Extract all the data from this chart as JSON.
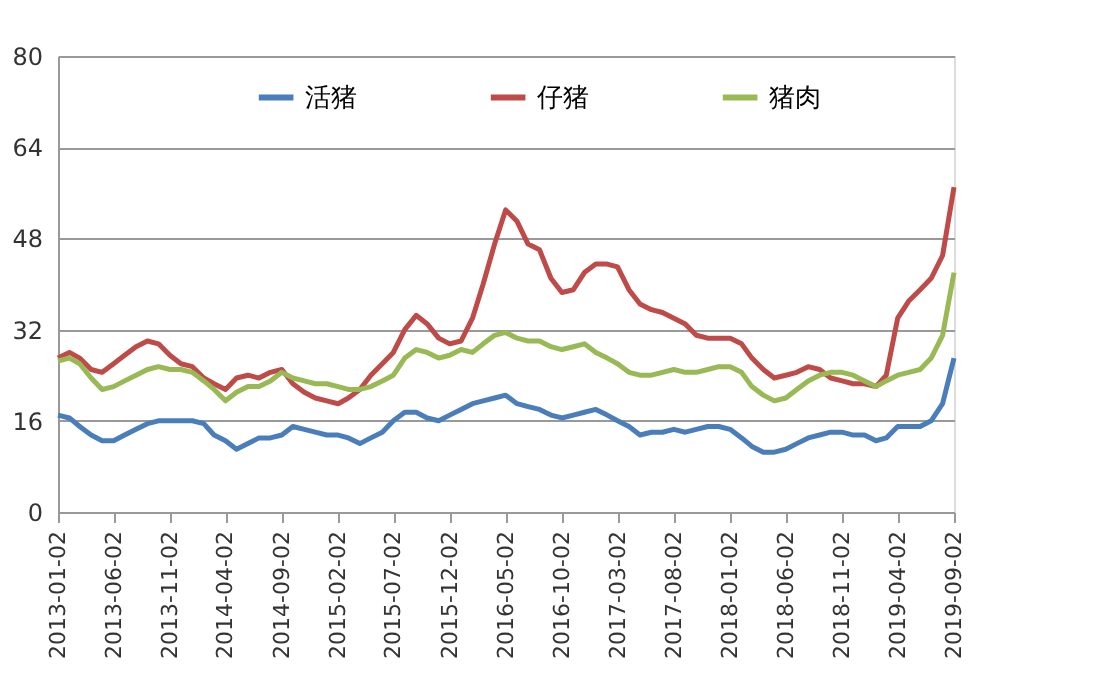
{
  "chart_data": {
    "type": "line",
    "x": [
      "2013-01-02",
      "2013-02-02",
      "2013-03-02",
      "2013-04-02",
      "2013-05-02",
      "2013-06-02",
      "2013-07-02",
      "2013-08-02",
      "2013-09-02",
      "2013-10-02",
      "2013-11-02",
      "2013-12-02",
      "2014-01-02",
      "2014-02-02",
      "2014-03-02",
      "2014-04-02",
      "2014-05-02",
      "2014-06-02",
      "2014-07-02",
      "2014-08-02",
      "2014-09-02",
      "2014-10-02",
      "2014-11-02",
      "2014-12-02",
      "2015-01-02",
      "2015-02-02",
      "2015-03-02",
      "2015-04-02",
      "2015-05-02",
      "2015-06-02",
      "2015-07-02",
      "2015-08-02",
      "2015-09-02",
      "2015-10-02",
      "2015-11-02",
      "2015-12-02",
      "2016-01-02",
      "2016-02-02",
      "2016-03-02",
      "2016-04-02",
      "2016-05-02",
      "2016-06-02",
      "2016-07-02",
      "2016-08-02",
      "2016-09-02",
      "2016-10-02",
      "2016-11-02",
      "2016-12-02",
      "2017-01-02",
      "2017-02-02",
      "2017-03-02",
      "2017-04-02",
      "2017-05-02",
      "2017-06-02",
      "2017-07-02",
      "2017-08-02",
      "2017-09-02",
      "2017-10-02",
      "2017-11-02",
      "2017-12-02",
      "2018-01-02",
      "2018-02-02",
      "2018-03-02",
      "2018-04-02",
      "2018-05-02",
      "2018-06-02",
      "2018-07-02",
      "2018-08-02",
      "2018-09-02",
      "2018-10-02",
      "2018-11-02",
      "2018-12-02",
      "2019-01-02",
      "2019-02-02",
      "2019-03-02",
      "2019-04-02",
      "2019-05-02",
      "2019-06-02",
      "2019-07-02",
      "2019-08-02",
      "2019-09-02"
    ],
    "series": [
      {
        "name": "活猪",
        "color": "#4a7ebb",
        "values": [
          17,
          16.5,
          15,
          13.5,
          12.5,
          12.5,
          13.5,
          14.5,
          15.5,
          16,
          16,
          16,
          16,
          15.5,
          13.5,
          12.5,
          11,
          12,
          13,
          13,
          13.5,
          15,
          14.5,
          14,
          13.5,
          13.5,
          13,
          12,
          13,
          14,
          16,
          17.5,
          17.5,
          16.5,
          16,
          17,
          18,
          19,
          19.5,
          20,
          20.5,
          19,
          18.5,
          18,
          17,
          16.5,
          17,
          17.5,
          18,
          17,
          16,
          15,
          13.5,
          14,
          14,
          14.5,
          14,
          14.5,
          15,
          15,
          14.5,
          13,
          11.5,
          10.5,
          10.5,
          11,
          12,
          13,
          13.5,
          14,
          14,
          13.5,
          13.5,
          12.5,
          13,
          15,
          15,
          15,
          16,
          19,
          27
        ]
      },
      {
        "name": "仔猪",
        "color": "#be4b48",
        "values": [
          27,
          28,
          27,
          25,
          24.5,
          26,
          27.5,
          29,
          30,
          29.5,
          27.5,
          26,
          25.5,
          23.5,
          22.5,
          21.5,
          23.5,
          24,
          23.5,
          24.5,
          25,
          22.5,
          21,
          20,
          19.5,
          19,
          20,
          21.5,
          24,
          26,
          28,
          32,
          34.5,
          33,
          30.5,
          29.5,
          30,
          34,
          40,
          47,
          53,
          51,
          47,
          46,
          41,
          38.5,
          39,
          42,
          43.5,
          43.5,
          43,
          39,
          36.5,
          35.5,
          35,
          34,
          33,
          31,
          30.5,
          30.5,
          30.5,
          29.5,
          27,
          25,
          23.5,
          24,
          24.5,
          25.5,
          25,
          23.5,
          23,
          22.5,
          22.5,
          22,
          24,
          34,
          37,
          39,
          41,
          45,
          57
        ]
      },
      {
        "name": "猪肉",
        "color": "#98b954",
        "values": [
          26.5,
          27,
          26,
          23.5,
          21.5,
          22,
          23,
          24,
          25,
          25.5,
          25,
          25,
          24.5,
          23,
          21.5,
          19.5,
          21,
          22,
          22,
          23,
          24.5,
          23.5,
          23,
          22.5,
          22.5,
          22,
          21.5,
          21.5,
          22,
          23,
          24,
          27,
          28.5,
          28,
          27,
          27.5,
          28.5,
          28,
          29.5,
          31,
          31.5,
          30.5,
          30,
          30,
          29,
          28.5,
          29,
          29.5,
          28,
          27,
          26,
          24.5,
          24,
          24,
          24.5,
          25,
          24.5,
          24.5,
          25,
          25.5,
          25.5,
          24.5,
          22,
          20.5,
          19.5,
          20,
          21.5,
          23,
          24,
          24.5,
          24.5,
          24,
          23,
          22,
          23,
          24,
          24.5,
          25,
          27,
          31,
          42
        ]
      }
    ],
    "xlim": [
      "2013-01-02",
      "2019-09-02"
    ],
    "xticks": [
      "2013-01-02",
      "2013-06-02",
      "2013-11-02",
      "2014-04-02",
      "2014-09-02",
      "2015-02-02",
      "2015-07-02",
      "2015-12-02",
      "2016-05-02",
      "2016-10-02",
      "2017-03-02",
      "2017-08-02",
      "2018-01-02",
      "2018-06-02",
      "2018-11-02",
      "2019-04-02",
      "2019-09-02"
    ],
    "ylim": [
      0,
      80
    ],
    "yticks": [
      0,
      16,
      32,
      48,
      64,
      80
    ],
    "grid": "y",
    "legend": "top",
    "marker": "none",
    "line_style": "solid"
  }
}
